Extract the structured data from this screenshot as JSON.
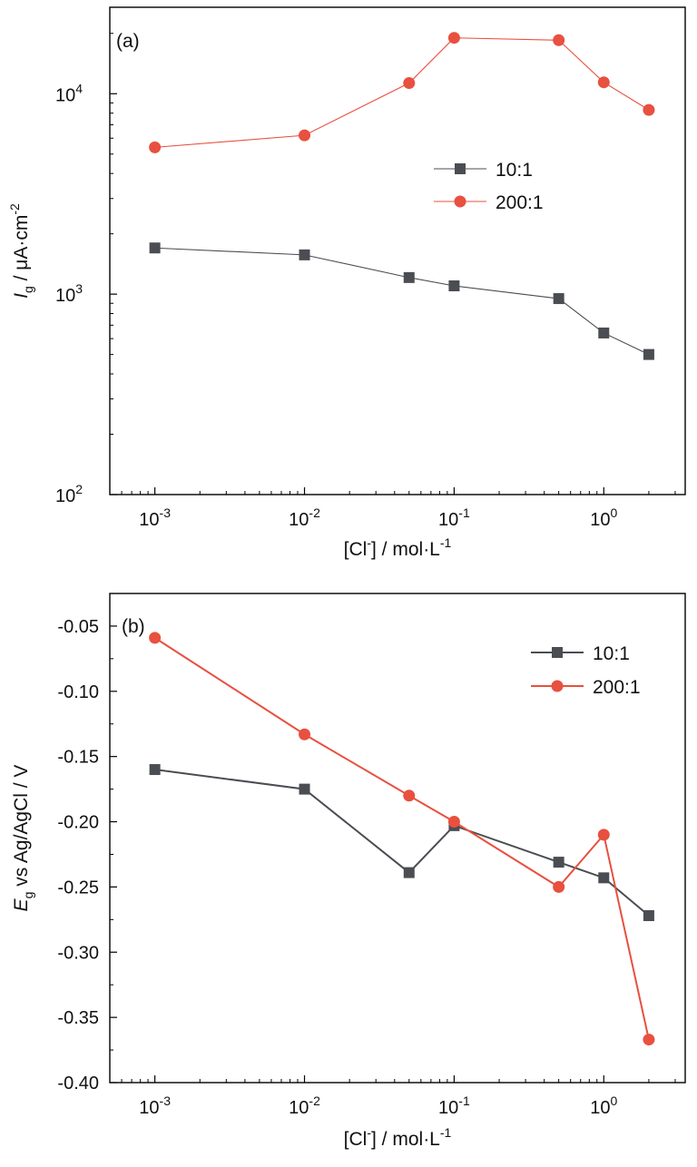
{
  "chart_data": [
    {
      "panel_label": "(a)",
      "type": "line",
      "x_scale": "log",
      "y_scale": "log",
      "xlim": [
        0.0005,
        3.5
      ],
      "ylim": [
        100,
        27000
      ],
      "xlabel": {
        "base": "[Cl",
        "sup": "-",
        "rest": "] / mol·L",
        "sup2": "-1"
      },
      "ylabel": {
        "italic": "I",
        "sub": "g",
        "rest": " / μA·cm",
        "sup": "-2"
      },
      "x_ticks": [
        {
          "value": 0.001,
          "base": "10",
          "exp": "-3"
        },
        {
          "value": 0.01,
          "base": "10",
          "exp": "-2"
        },
        {
          "value": 0.1,
          "base": "10",
          "exp": "-1"
        },
        {
          "value": 1,
          "base": "10",
          "exp": "0"
        }
      ],
      "y_ticks": [
        {
          "value": 100,
          "base": "10",
          "exp": "2"
        },
        {
          "value": 1000,
          "base": "10",
          "exp": "3"
        },
        {
          "value": 10000,
          "base": "10",
          "exp": "4"
        }
      ],
      "legend_position": "center-right",
      "series": [
        {
          "name": "10:1",
          "marker": "square",
          "color": "#4a4d52",
          "x": [
            0.001,
            0.01,
            0.05,
            0.1,
            0.5,
            1,
            2
          ],
          "y": [
            1700,
            1570,
            1210,
            1100,
            950,
            640,
            500
          ]
        },
        {
          "name": "200:1",
          "marker": "circle",
          "color": "#e8503f",
          "x": [
            0.001,
            0.01,
            0.05,
            0.1,
            0.5,
            1,
            2
          ],
          "y": [
            5400,
            6200,
            11300,
            19000,
            18500,
            11400,
            8300
          ]
        }
      ]
    },
    {
      "panel_label": "(b)",
      "type": "line",
      "x_scale": "log",
      "y_scale": "linear",
      "xlim": [
        0.0005,
        3.5
      ],
      "ylim": [
        -0.4,
        -0.025
      ],
      "xlabel": {
        "base": "[Cl",
        "sup": "-",
        "rest": "] / mol·L",
        "sup2": "-1"
      },
      "ylabel": {
        "italic": "E",
        "sub": "g",
        "rest": " vs Ag/AgCl / V",
        "sup": ""
      },
      "x_ticks": [
        {
          "value": 0.001,
          "base": "10",
          "exp": "-3"
        },
        {
          "value": 0.01,
          "base": "10",
          "exp": "-2"
        },
        {
          "value": 0.1,
          "base": "10",
          "exp": "-1"
        },
        {
          "value": 1,
          "base": "10",
          "exp": "0"
        }
      ],
      "y_ticks": [
        {
          "value": -0.05,
          "label": "-0.05"
        },
        {
          "value": -0.1,
          "label": "-0.10"
        },
        {
          "value": -0.15,
          "label": "-0.15"
        },
        {
          "value": -0.2,
          "label": "-0.20"
        },
        {
          "value": -0.25,
          "label": "-0.25"
        },
        {
          "value": -0.3,
          "label": "-0.30"
        },
        {
          "value": -0.35,
          "label": "-0.35"
        },
        {
          "value": -0.4,
          "label": "-0.40"
        }
      ],
      "legend_position": "top-right",
      "series": [
        {
          "name": "10:1",
          "marker": "square",
          "color": "#4a4d52",
          "x": [
            0.001,
            0.01,
            0.05,
            0.1,
            0.5,
            1,
            2
          ],
          "y": [
            -0.16,
            -0.175,
            -0.239,
            -0.203,
            -0.231,
            -0.243,
            -0.272
          ]
        },
        {
          "name": "200:1",
          "marker": "circle",
          "color": "#e8503f",
          "x": [
            0.001,
            0.01,
            0.05,
            0.1,
            0.5,
            1,
            2
          ],
          "y": [
            -0.059,
            -0.133,
            -0.18,
            -0.2,
            -0.25,
            -0.21,
            -0.367
          ]
        }
      ]
    }
  ]
}
